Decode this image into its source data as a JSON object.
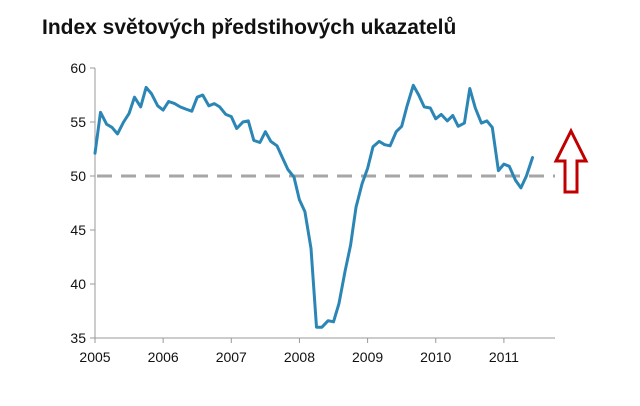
{
  "title": "Index světových předstihových ukazatelů",
  "colors": {
    "line": "#2b86b6",
    "reference": "#a6a6a6",
    "arrow": "#c00000",
    "axis": "#999999"
  },
  "icons": {
    "arrow": "up-arrow-outline-icon"
  },
  "chart_data": {
    "type": "line",
    "title": "Index světových předstihových ukazatelů",
    "xlabel": "",
    "ylabel": "",
    "ylim": [
      35,
      60
    ],
    "xlim": [
      2005,
      2011.75
    ],
    "yticks": [
      35,
      40,
      45,
      50,
      55,
      60
    ],
    "xtick_labels": [
      "2005",
      "2006",
      "2007",
      "2008",
      "2009",
      "2010",
      "2011"
    ],
    "grid": false,
    "reference_line": {
      "y": 50,
      "style": "dashed"
    },
    "series": [
      {
        "x": [
          2005.0,
          2005.08,
          2005.17,
          2005.25,
          2005.33,
          2005.42,
          2005.5,
          2005.58,
          2005.67,
          2005.75,
          2005.83,
          2005.92,
          2006.0,
          2006.08,
          2006.17,
          2006.25,
          2006.33,
          2006.42,
          2006.5,
          2006.58,
          2006.67,
          2006.75,
          2006.83,
          2006.92,
          2007.0,
          2007.08,
          2007.17,
          2007.25,
          2007.33,
          2007.42,
          2007.5,
          2007.58,
          2007.67,
          2007.75,
          2007.83,
          2007.92,
          2008.0,
          2008.08,
          2008.17,
          2008.25,
          2008.33,
          2008.42,
          2008.5,
          2008.58,
          2008.67,
          2008.75,
          2008.83,
          2008.92,
          2009.0,
          2009.08,
          2009.17,
          2009.25,
          2009.33,
          2009.42,
          2009.5,
          2009.58,
          2009.67,
          2009.75,
          2009.83,
          2009.92,
          2010.0,
          2010.08,
          2010.17,
          2010.25,
          2010.33,
          2010.42,
          2010.5,
          2010.58,
          2010.67,
          2010.75,
          2010.83,
          2010.92,
          2011.0,
          2011.08,
          2011.17,
          2011.25,
          2011.33,
          2011.42
        ],
        "values": [
          52.1,
          55.9,
          54.8,
          54.5,
          53.9,
          55.0,
          55.8,
          57.3,
          56.4,
          58.2,
          57.6,
          56.5,
          56.1,
          56.9,
          56.7,
          56.4,
          56.2,
          56.0,
          57.3,
          57.5,
          56.5,
          56.7,
          56.4,
          55.7,
          55.5,
          54.4,
          55.0,
          55.1,
          53.3,
          53.1,
          54.1,
          53.2,
          52.8,
          51.7,
          50.6,
          49.9,
          47.8,
          46.7,
          43.3,
          36.0,
          36.0,
          36.6,
          36.5,
          38.2,
          41.2,
          43.6,
          47.1,
          49.3,
          50.7,
          52.7,
          53.2,
          52.9,
          52.8,
          54.1,
          54.6,
          56.5,
          58.4,
          57.5,
          56.4,
          56.3,
          55.3,
          55.7,
          55.1,
          55.6,
          54.6,
          54.9,
          58.1,
          56.3,
          54.9,
          55.1,
          54.5,
          50.5,
          51.1,
          50.9,
          49.6,
          48.9,
          50.0,
          51.7
        ]
      }
    ]
  }
}
